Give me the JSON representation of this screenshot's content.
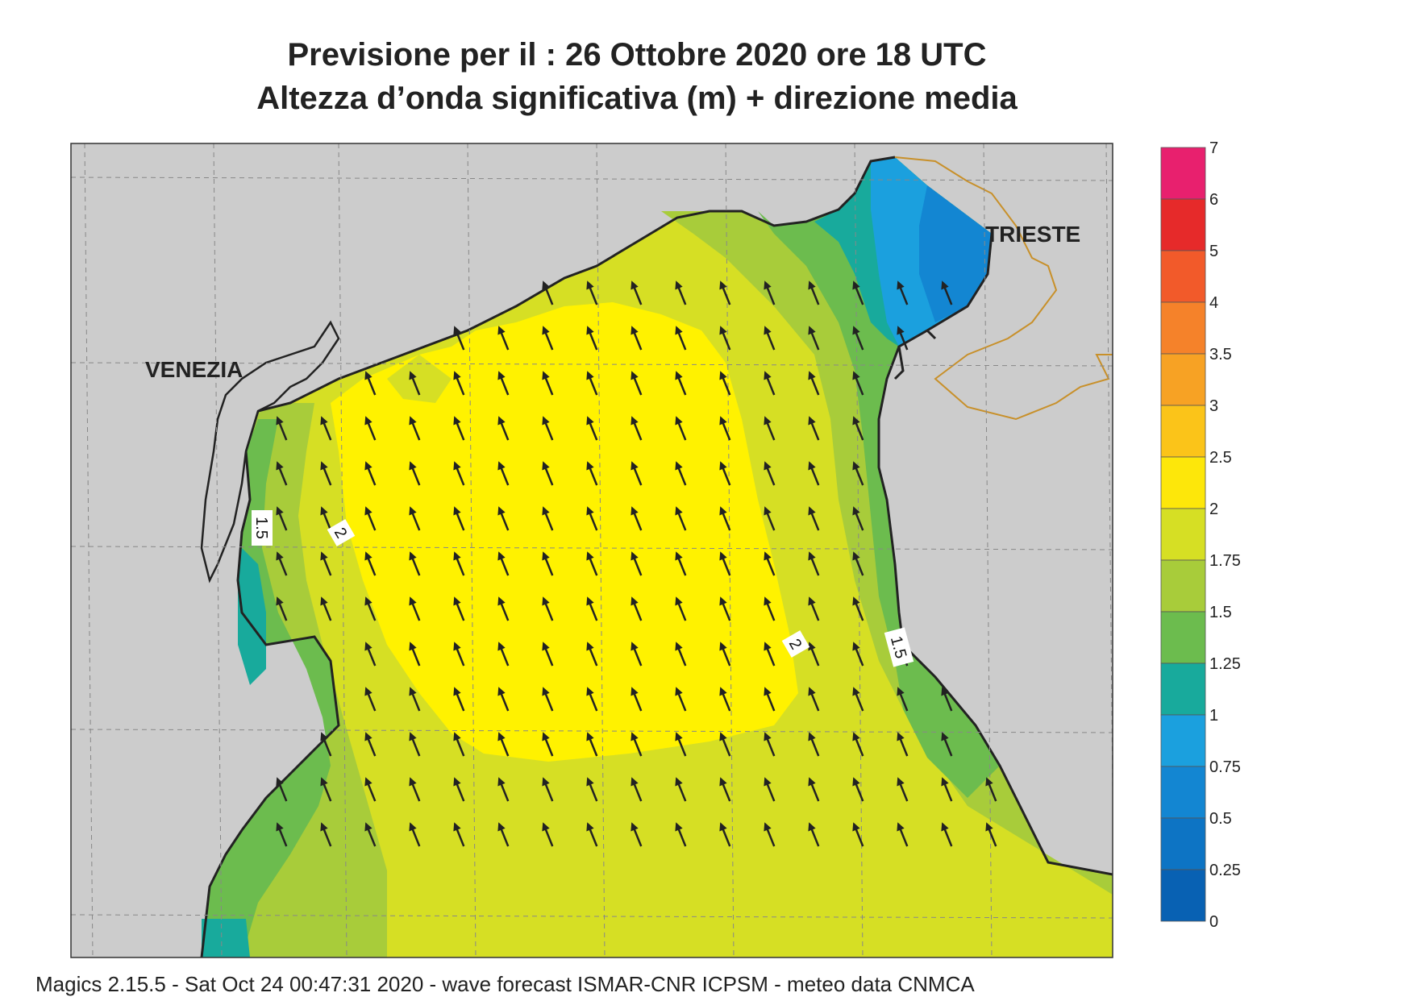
{
  "header": {
    "line1": "Previsione per il  :  26  Ottobre  2020   ore 18 UTC",
    "line2": "Altezza d’onda significativa (m) + direzione media"
  },
  "footer": "Magics 2.15.5 - Sat Oct 24 00:47:31 2020 - wave forecast  ISMAR-CNR  ICPSM - meteo data   CNMCA",
  "map_labels": {
    "venezia": "VENEZIA",
    "trieste": "TRIESTE"
  },
  "contour_labels": [
    "1.5",
    "2",
    "2",
    "1.5"
  ],
  "colorbar": {
    "levels": [
      "7",
      "6",
      "5",
      "4",
      "3.5",
      "3",
      "2.5",
      "2",
      "1.75",
      "1.5",
      "1.25",
      "1",
      "0.75",
      "0.5",
      "0.25",
      "0"
    ],
    "colors": [
      "#e8206e",
      "#e62a2a",
      "#f25a2a",
      "#f5822a",
      "#f7a224",
      "#fbc419",
      "#fde70a",
      "#d6df24",
      "#a8cc3a",
      "#6cbc4e",
      "#18aa9c",
      "#1ba0de",
      "#1386d2",
      "#0d74c4",
      "#0861b3"
    ]
  },
  "colors": {
    "land": "#cccccc",
    "sea_2_2_5": "#fff200",
    "sea_1_75_2": "#d6df24",
    "sea_1_5_1_75": "#a8cc3a",
    "sea_1_25_1_5": "#6cbc4e",
    "sea_1_1_25": "#18aa9c",
    "sea_0_75_1": "#1ba0de",
    "sea_0_5_0_75": "#1386d2",
    "border": "#c8902a",
    "arrow": "#222222"
  },
  "wave_direction": "NNW"
}
